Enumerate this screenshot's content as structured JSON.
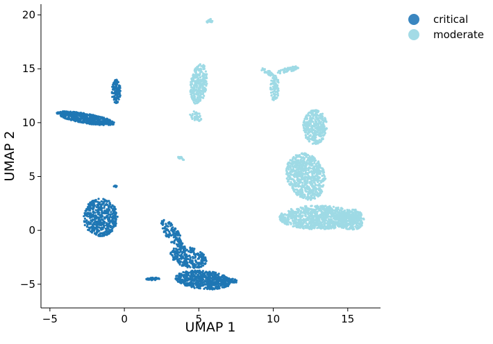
{
  "chart_data": {
    "type": "scatter",
    "title": "",
    "xlabel": "UMAP 1",
    "ylabel": "UMAP 2",
    "xlim": [
      -5.6,
      17.2
    ],
    "ylim": [
      -7.2,
      21.0
    ],
    "xticks": [
      -5,
      0,
      5,
      10,
      15
    ],
    "yticks": [
      -5,
      0,
      5,
      10,
      15,
      20
    ],
    "grid": false,
    "legend_position": "top-right outside",
    "series": [
      {
        "name": "critical",
        "color": "#1f77b4",
        "legend_color": "#3a86c0",
        "clusters": [
          {
            "label": "upper-left elongated",
            "center": [
              -2.6,
              10.4
            ],
            "rx": 2.0,
            "ry": 0.45,
            "angle_deg": -14,
            "n": 520
          },
          {
            "label": "small vertical",
            "center": [
              -0.55,
              12.9
            ],
            "rx": 0.3,
            "ry": 1.1,
            "angle_deg": 0,
            "n": 110
          },
          {
            "label": "middle-left blob",
            "center": [
              -1.6,
              1.2
            ],
            "rx": 1.15,
            "ry": 1.75,
            "angle_deg": 0,
            "n": 480
          },
          {
            "label": "lower diagonal upper",
            "center": [
              3.2,
              -0.3
            ],
            "rx": 0.45,
            "ry": 1.4,
            "angle_deg": 25,
            "n": 120
          },
          {
            "label": "lower diagonal middle",
            "center": [
              4.3,
              -2.5
            ],
            "rx": 1.3,
            "ry": 0.9,
            "angle_deg": -30,
            "n": 260
          },
          {
            "label": "lower diagonal bottom",
            "center": [
              5.3,
              -4.6
            ],
            "rx": 1.9,
            "ry": 0.85,
            "angle_deg": -8,
            "n": 520
          },
          {
            "label": "lower right tail",
            "center": [
              6.8,
              -4.6
            ],
            "rx": 0.8,
            "ry": 0.25,
            "angle_deg": -10,
            "n": 80
          },
          {
            "label": "lower left tail",
            "center": [
              1.9,
              -4.5
            ],
            "rx": 0.45,
            "ry": 0.12,
            "angle_deg": 0,
            "n": 40
          },
          {
            "label": "tiny dot",
            "center": [
              -0.6,
              4.1
            ],
            "rx": 0.1,
            "ry": 0.1,
            "angle_deg": 0,
            "n": 6
          }
        ]
      },
      {
        "name": "moderate",
        "color": "#9edae5",
        "legend_color": "#a3dbe6",
        "clusters": [
          {
            "label": "top small",
            "center": [
              5.7,
              19.4
            ],
            "rx": 0.2,
            "ry": 0.25,
            "angle_deg": -40,
            "n": 18
          },
          {
            "label": "center vertical",
            "center": [
              5.0,
              13.6
            ],
            "rx": 0.55,
            "ry": 1.9,
            "angle_deg": -5,
            "n": 280
          },
          {
            "label": "center vertical tail",
            "center": [
              4.8,
              10.6
            ],
            "rx": 0.35,
            "ry": 0.5,
            "angle_deg": 30,
            "n": 40
          },
          {
            "label": "small diagonal",
            "center": [
              3.8,
              6.7
            ],
            "rx": 0.3,
            "ry": 0.1,
            "angle_deg": -40,
            "n": 16
          },
          {
            "label": "right upper y-shape stem",
            "center": [
              10.1,
              13.2
            ],
            "rx": 0.3,
            "ry": 1.2,
            "angle_deg": 0,
            "n": 90
          },
          {
            "label": "right upper y-shape left arm",
            "center": [
              9.6,
              14.7
            ],
            "rx": 0.5,
            "ry": 0.2,
            "angle_deg": -40,
            "n": 40
          },
          {
            "label": "right upper y-shape right arm",
            "center": [
              11.0,
              14.9
            ],
            "rx": 0.8,
            "ry": 0.2,
            "angle_deg": 20,
            "n": 60
          },
          {
            "label": "right large upper",
            "center": [
              12.8,
              9.6
            ],
            "rx": 0.8,
            "ry": 1.6,
            "angle_deg": 0,
            "n": 320
          },
          {
            "label": "right large middle",
            "center": [
              12.2,
              5.0
            ],
            "rx": 1.3,
            "ry": 2.2,
            "angle_deg": 10,
            "n": 700
          },
          {
            "label": "right large lower",
            "center": [
              13.0,
              1.2
            ],
            "rx": 2.6,
            "ry": 1.1,
            "angle_deg": 0,
            "n": 900
          },
          {
            "label": "right large lower-right",
            "center": [
              15.2,
              1.0
            ],
            "rx": 0.9,
            "ry": 1.0,
            "angle_deg": 0,
            "n": 260
          }
        ]
      }
    ]
  }
}
